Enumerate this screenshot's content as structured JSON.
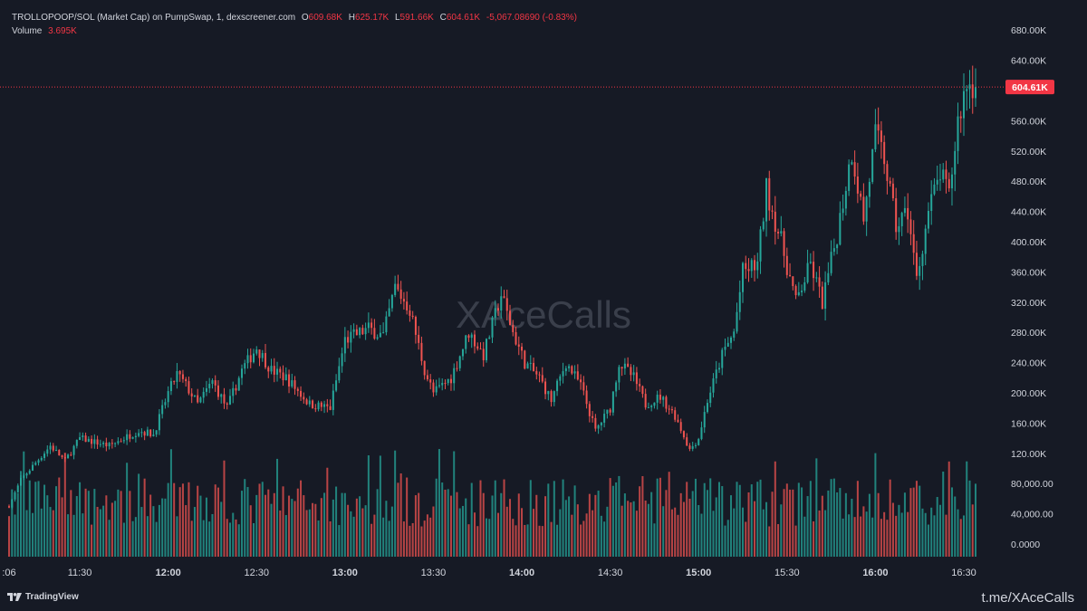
{
  "header": {
    "title": "TROLLOPOOP/SOL (Market Cap) on PumpSwap, 1, dexscreener.com",
    "o_label": "O",
    "o_value": "609.68K",
    "h_label": "H",
    "h_value": "625.17K",
    "l_label": "L",
    "l_value": "591.66K",
    "c_label": "C",
    "c_value": "604.61K",
    "change": "-5,067.08690 (-0.83%)",
    "volume_label": "Volume",
    "volume_value": "3.695K"
  },
  "watermark": "XAceCalls",
  "footer": {
    "brand": "TradingView",
    "link": "t.me/XAceCalls"
  },
  "last_price_label": "604.61K",
  "colors": {
    "up": "#26a69a",
    "down": "#ef5350",
    "background": "#161a25",
    "last_price": "#f23645"
  },
  "chart_data": {
    "type": "candlestick",
    "price_axis": {
      "range": [
        0,
        700000
      ],
      "ticks": [
        {
          "value": 680000,
          "label": "680.00K"
        },
        {
          "value": 640000,
          "label": "640.00K"
        },
        {
          "value": 560000,
          "label": "560.00K"
        },
        {
          "value": 520000,
          "label": "520.00K"
        },
        {
          "value": 480000,
          "label": "480.00K"
        },
        {
          "value": 440000,
          "label": "440.00K"
        },
        {
          "value": 400000,
          "label": "400.00K"
        },
        {
          "value": 360000,
          "label": "360.00K"
        },
        {
          "value": 320000,
          "label": "320.00K"
        },
        {
          "value": 280000,
          "label": "280.00K"
        },
        {
          "value": 240000,
          "label": "240.00K"
        },
        {
          "value": 200000,
          "label": "200.00K"
        },
        {
          "value": 160000,
          "label": "160.00K"
        },
        {
          "value": 120000,
          "label": "120.00K"
        },
        {
          "value": 80000,
          "label": "80,000.00"
        },
        {
          "value": 40000,
          "label": "40,000.00"
        },
        {
          "value": 0,
          "label": "0.0000"
        }
      ]
    },
    "time_axis": {
      "start": "11:06",
      "end": "16:34",
      "ticks": [
        {
          "time": "11:06",
          "label": ":06",
          "bold": false
        },
        {
          "time": "11:30",
          "label": "11:30",
          "bold": false
        },
        {
          "time": "12:00",
          "label": "12:00",
          "bold": true
        },
        {
          "time": "12:30",
          "label": "12:30",
          "bold": false
        },
        {
          "time": "13:00",
          "label": "13:00",
          "bold": true
        },
        {
          "time": "13:30",
          "label": "13:30",
          "bold": false
        },
        {
          "time": "14:00",
          "label": "14:00",
          "bold": true
        },
        {
          "time": "14:30",
          "label": "14:30",
          "bold": false
        },
        {
          "time": "15:00",
          "label": "15:00",
          "bold": true
        },
        {
          "time": "15:30",
          "label": "15:30",
          "bold": false
        },
        {
          "time": "16:00",
          "label": "16:00",
          "bold": true
        },
        {
          "time": "16:30",
          "label": "16:30",
          "bold": false
        }
      ]
    },
    "last_price": 604610,
    "price_keypoints": [
      [
        "11:06",
        50000
      ],
      [
        "11:10",
        85000
      ],
      [
        "11:20",
        130000
      ],
      [
        "11:25",
        110000
      ],
      [
        "11:30",
        140000
      ],
      [
        "11:40",
        130000
      ],
      [
        "11:50",
        150000
      ],
      [
        "11:55",
        145000
      ],
      [
        "12:00",
        200000
      ],
      [
        "12:03",
        225000
      ],
      [
        "12:06",
        210000
      ],
      [
        "12:10",
        185000
      ],
      [
        "12:15",
        215000
      ],
      [
        "12:20",
        180000
      ],
      [
        "12:25",
        230000
      ],
      [
        "12:30",
        260000
      ],
      [
        "12:35",
        230000
      ],
      [
        "12:40",
        220000
      ],
      [
        "12:48",
        185000
      ],
      [
        "12:55",
        180000
      ],
      [
        "13:00",
        270000
      ],
      [
        "13:08",
        285000
      ],
      [
        "13:13",
        275000
      ],
      [
        "13:17",
        340000
      ],
      [
        "13:22",
        310000
      ],
      [
        "13:27",
        230000
      ],
      [
        "13:30",
        200000
      ],
      [
        "13:36",
        220000
      ],
      [
        "13:42",
        280000
      ],
      [
        "13:47",
        250000
      ],
      [
        "13:53",
        330000
      ],
      [
        "13:57",
        280000
      ],
      [
        "14:01",
        240000
      ],
      [
        "14:06",
        220000
      ],
      [
        "14:10",
        190000
      ],
      [
        "14:15",
        240000
      ],
      [
        "14:20",
        210000
      ],
      [
        "14:25",
        150000
      ],
      [
        "14:30",
        180000
      ],
      [
        "14:33",
        240000
      ],
      [
        "14:38",
        220000
      ],
      [
        "14:42",
        185000
      ],
      [
        "14:47",
        195000
      ],
      [
        "14:52",
        170000
      ],
      [
        "14:57",
        125000
      ],
      [
        "15:00",
        140000
      ],
      [
        "15:03",
        190000
      ],
      [
        "15:08",
        250000
      ],
      [
        "15:12",
        280000
      ],
      [
        "15:15",
        360000
      ],
      [
        "15:20",
        370000
      ],
      [
        "15:23",
        470000
      ],
      [
        "15:28",
        400000
      ],
      [
        "15:33",
        320000
      ],
      [
        "15:38",
        370000
      ],
      [
        "15:42",
        320000
      ],
      [
        "15:47",
        410000
      ],
      [
        "15:52",
        520000
      ],
      [
        "15:56",
        430000
      ],
      [
        "16:00",
        540000
      ],
      [
        "16:03",
        510000
      ],
      [
        "16:07",
        420000
      ],
      [
        "16:11",
        440000
      ],
      [
        "16:14",
        350000
      ],
      [
        "16:18",
        440000
      ],
      [
        "16:22",
        490000
      ],
      [
        "16:25",
        460000
      ],
      [
        "16:28",
        560000
      ],
      [
        "16:31",
        610000
      ],
      [
        "16:34",
        604610
      ]
    ]
  }
}
